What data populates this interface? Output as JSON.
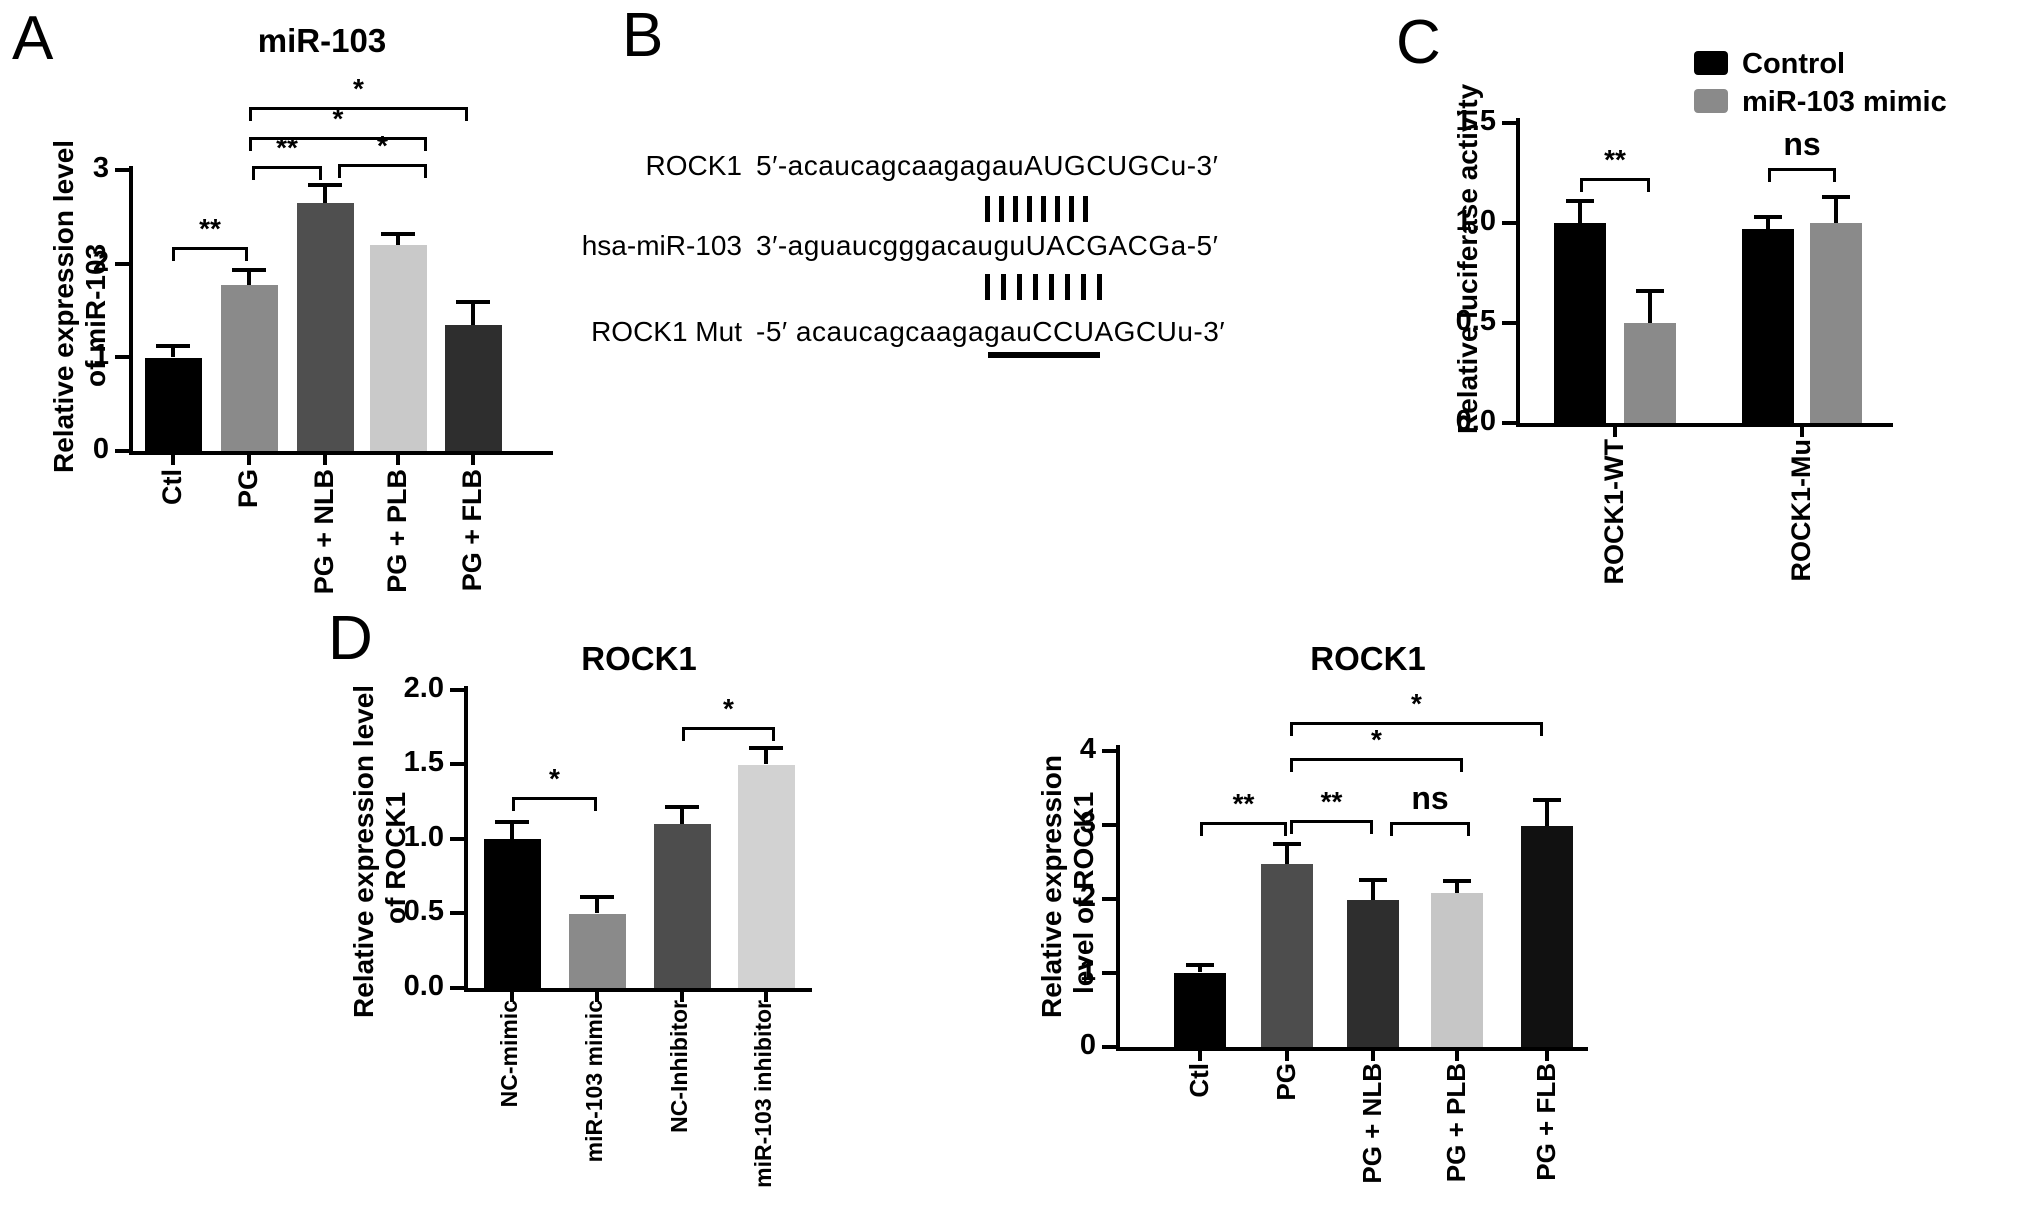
{
  "panel_labels": {
    "a": "A",
    "b": "B",
    "c": "C",
    "d": "D"
  },
  "panel_b": {
    "rows": [
      {
        "name": "ROCK1",
        "sequence": "5′-acaucagcaagagauAUGCUGCu-3′"
      },
      {
        "name": "hsa-miR-103",
        "sequence": "3′-aguaucgggacauguUACGACGa-5′"
      },
      {
        "name": "ROCK1 Mut",
        "sequence": "-5′ acaucagcaagagauCCUAGCUu-3′"
      }
    ],
    "pairing_marks": [
      8,
      8
    ],
    "mutant_seed_underline": "CCUAGCU"
  },
  "legend": {
    "items": [
      {
        "label": "Control",
        "color": "#000000"
      },
      {
        "label": "miR-103 mimic",
        "color": "#8a8a8a"
      }
    ]
  },
  "chart_data": [
    {
      "id": "panel-a",
      "type": "bar",
      "title": "miR-103",
      "ylabel": [
        "Relative expression level",
        "of miR-103"
      ],
      "categories": [
        "Ctl",
        "PG",
        "PG + NLB",
        "PG + PLB",
        "PG + FLB"
      ],
      "values": [
        1.0,
        1.78,
        2.65,
        2.2,
        1.35
      ],
      "errors": [
        0.1,
        0.13,
        0.17,
        0.1,
        0.22
      ],
      "bar_colors": [
        "#000000",
        "#8a8a8a",
        "#4f4f4f",
        "#c9c9c9",
        "#2e2e2e"
      ],
      "yticks": [
        "0",
        "1",
        "2",
        "3"
      ],
      "ylim": [
        0,
        3
      ],
      "grid": false,
      "significance": [
        {
          "between": [
            "Ctl",
            "PG"
          ],
          "label": "**"
        },
        {
          "between": [
            "PG",
            "PG + NLB"
          ],
          "label": "**"
        },
        {
          "between": [
            "PG + NLB",
            "PG + PLB"
          ],
          "label": "*"
        },
        {
          "between": [
            "PG",
            "PG + PLB"
          ],
          "label": "*"
        },
        {
          "between": [
            "PG",
            "PG + FLB"
          ],
          "label": "*"
        }
      ]
    },
    {
      "id": "panel-c",
      "type": "bar",
      "grouped": true,
      "title": "",
      "ylabel": [
        "Relative luciferase activity"
      ],
      "categories": [
        "ROCK1-WT",
        "ROCK1-Mu"
      ],
      "series": [
        {
          "name": "Control",
          "color": "#000000",
          "values": [
            1.0,
            0.97
          ],
          "errors": [
            0.1,
            0.05
          ]
        },
        {
          "name": "miR-103 mimic",
          "color": "#8a8a8a",
          "values": [
            0.5,
            1.0
          ],
          "errors": [
            0.15,
            0.12
          ]
        }
      ],
      "yticks": [
        "0.0",
        "0.5",
        "1.0",
        "1.5"
      ],
      "ylim": [
        0,
        1.5
      ],
      "grid": false,
      "legend_position": "top-right",
      "significance": [
        {
          "between": [
            "ROCK1-WT: Control",
            "ROCK1-WT: miR-103 mimic"
          ],
          "label": "**"
        },
        {
          "between": [
            "ROCK1-Mu: Control",
            "ROCK1-Mu: miR-103 mimic"
          ],
          "label": "ns"
        }
      ]
    },
    {
      "id": "panel-d-left",
      "type": "bar",
      "title": "ROCK1",
      "ylabel": [
        "Relative expression level",
        "of ROCK1"
      ],
      "categories": [
        "NC-mimic",
        "miR-103 mimic",
        "NC-Inhibitor",
        "miR-103 inhibitor"
      ],
      "values": [
        1.0,
        0.5,
        1.1,
        1.5
      ],
      "errors": [
        0.1,
        0.1,
        0.1,
        0.1
      ],
      "bar_colors": [
        "#000000",
        "#8a8a8a",
        "#4d4d4d",
        "#d2d2d2"
      ],
      "yticks": [
        "0.0",
        "0.5",
        "1.0",
        "1.5",
        "2.0"
      ],
      "ylim": [
        0,
        2
      ],
      "grid": false,
      "significance": [
        {
          "between": [
            "NC-mimic",
            "miR-103 mimic"
          ],
          "label": "*"
        },
        {
          "between": [
            "NC-Inhibitor",
            "miR-103 inhibitor"
          ],
          "label": "*"
        }
      ]
    },
    {
      "id": "panel-d-right",
      "type": "bar",
      "title": "ROCK1",
      "ylabel": [
        "Relative expression",
        "level of ROCK1"
      ],
      "categories": [
        "Ctl",
        "PG",
        "PG + NLB",
        "PG + PLB",
        "PG + FLB"
      ],
      "values": [
        1.0,
        2.45,
        1.97,
        2.07,
        2.97
      ],
      "errors": [
        0.08,
        0.25,
        0.25,
        0.13,
        0.32
      ],
      "bar_colors": [
        "#000000",
        "#4d4d4d",
        "#2e2e2e",
        "#c6c6c6",
        "#111111"
      ],
      "yticks": [
        "0",
        "1",
        "2",
        "3",
        "4"
      ],
      "ylim": [
        0,
        4
      ],
      "grid": false,
      "significance": [
        {
          "between": [
            "Ctl",
            "PG"
          ],
          "label": "**"
        },
        {
          "between": [
            "PG",
            "PG + NLB"
          ],
          "label": "**"
        },
        {
          "between": [
            "PG + NLB",
            "PG + PLB"
          ],
          "label": "ns"
        },
        {
          "between": [
            "PG",
            "PG + PLB"
          ],
          "label": "*"
        },
        {
          "between": [
            "PG",
            "PG + FLB"
          ],
          "label": "*"
        }
      ]
    }
  ]
}
